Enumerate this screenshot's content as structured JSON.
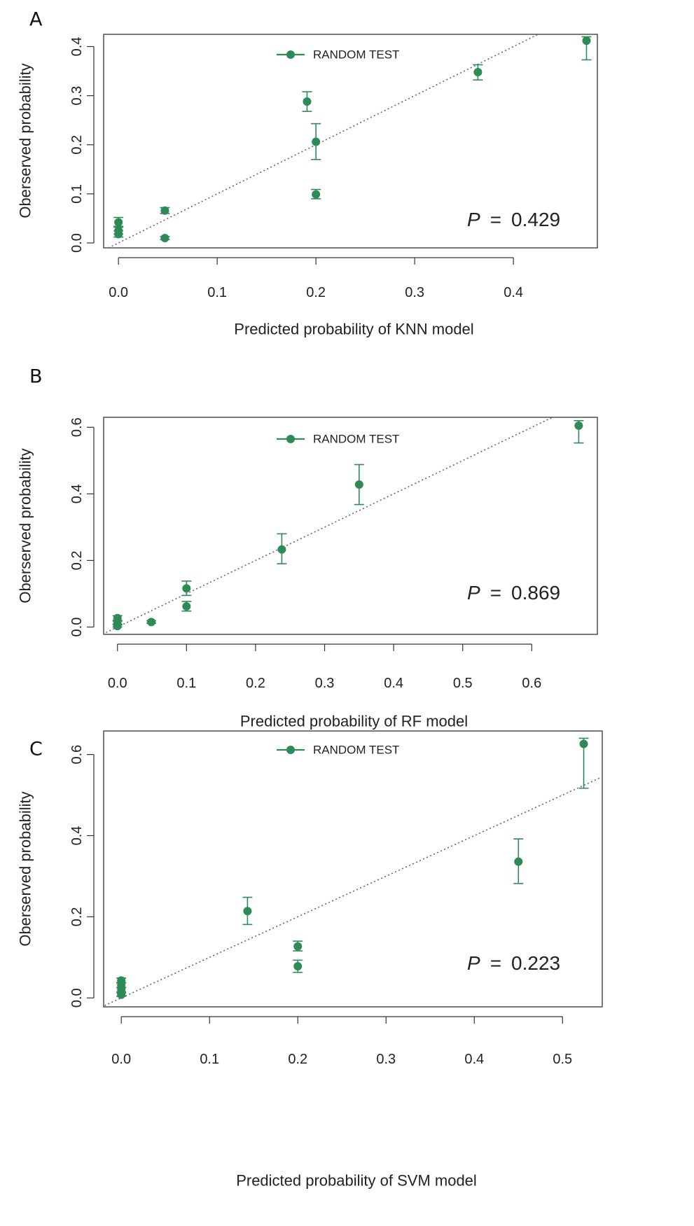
{
  "color": "#2e8b57",
  "chart_data": [
    {
      "panel_label": "A",
      "type": "scatter",
      "xlabel": "Predicted probability of KNN model",
      "ylabel": "Oberserved probability",
      "xlim": [
        -0.015,
        0.485
      ],
      "ylim": [
        -0.01,
        0.425
      ],
      "xticks": [
        "0.0",
        "0.1",
        "0.2",
        "0.3",
        "0.4"
      ],
      "xtick_values": [
        0,
        0.1,
        0.2,
        0.3,
        0.4
      ],
      "yticks": [
        "0.0",
        "0.1",
        "0.2",
        "0.3",
        "0.4"
      ],
      "ytick_values": [
        0,
        0.1,
        0.2,
        0.3,
        0.4
      ],
      "legend": "RANDOM TEST",
      "p_symbol": "P",
      "p_eq": "=",
      "p_value": "0.429",
      "reference_line": "y = x (dotted)",
      "points": [
        {
          "x": 0.0,
          "y": 0.018,
          "lo": 0.012,
          "hi": 0.025
        },
        {
          "x": 0.0,
          "y": 0.025,
          "lo": 0.018,
          "hi": 0.032
        },
        {
          "x": 0.0,
          "y": 0.042,
          "lo": 0.034,
          "hi": 0.052
        },
        {
          "x": 0.047,
          "y": 0.01,
          "lo": 0.007,
          "hi": 0.013
        },
        {
          "x": 0.047,
          "y": 0.066,
          "lo": 0.06,
          "hi": 0.072
        },
        {
          "x": 0.191,
          "y": 0.288,
          "lo": 0.268,
          "hi": 0.308
        },
        {
          "x": 0.2,
          "y": 0.206,
          "lo": 0.17,
          "hi": 0.243
        },
        {
          "x": 0.2,
          "y": 0.099,
          "lo": 0.09,
          "hi": 0.109
        },
        {
          "x": 0.364,
          "y": 0.348,
          "lo": 0.332,
          "hi": 0.363
        },
        {
          "x": 0.474,
          "y": 0.412,
          "lo": 0.373,
          "hi": 0.42
        }
      ]
    },
    {
      "panel_label": "B",
      "type": "scatter",
      "xlabel": "Predicted probability of RF model",
      "ylabel": "Oberserved probability",
      "xlim": [
        -0.02,
        0.695
      ],
      "ylim": [
        -0.022,
        0.63
      ],
      "xticks": [
        "0.0",
        "0.1",
        "0.2",
        "0.3",
        "0.4",
        "0.5",
        "0.6"
      ],
      "xtick_values": [
        0,
        0.1,
        0.2,
        0.3,
        0.4,
        0.5,
        0.6
      ],
      "yticks": [
        "0.0",
        "0.2",
        "0.4",
        "0.6"
      ],
      "ytick_values": [
        0,
        0.2,
        0.4,
        0.6
      ],
      "legend": "RANDOM TEST",
      "p_symbol": "P",
      "p_eq": "=",
      "p_value": "0.869",
      "reference_line": "y = x (dotted)",
      "points": [
        {
          "x": 0.0,
          "y": 0.003,
          "lo": 0.0,
          "hi": 0.008
        },
        {
          "x": 0.0,
          "y": 0.012,
          "lo": 0.007,
          "hi": 0.018
        },
        {
          "x": 0.0,
          "y": 0.027,
          "lo": 0.02,
          "hi": 0.034
        },
        {
          "x": 0.049,
          "y": 0.015,
          "lo": 0.011,
          "hi": 0.019
        },
        {
          "x": 0.1,
          "y": 0.062,
          "lo": 0.048,
          "hi": 0.077
        },
        {
          "x": 0.1,
          "y": 0.116,
          "lo": 0.095,
          "hi": 0.138
        },
        {
          "x": 0.238,
          "y": 0.233,
          "lo": 0.19,
          "hi": 0.28
        },
        {
          "x": 0.35,
          "y": 0.428,
          "lo": 0.368,
          "hi": 0.488
        },
        {
          "x": 0.668,
          "y": 0.605,
          "lo": 0.553,
          "hi": 0.62
        }
      ]
    },
    {
      "panel_label": "C",
      "type": "scatter",
      "xlabel": "Predicted probability of SVM model",
      "ylabel": "Oberserved probability",
      "xlim": [
        -0.02,
        0.545
      ],
      "ylim": [
        -0.022,
        0.658
      ],
      "xticks": [
        "0.0",
        "0.1",
        "0.2",
        "0.3",
        "0.4",
        "0.5"
      ],
      "xtick_values": [
        0,
        0.1,
        0.2,
        0.3,
        0.4,
        0.5
      ],
      "yticks": [
        "0.0",
        "0.2",
        "0.4",
        "0.6"
      ],
      "ytick_values": [
        0,
        0.2,
        0.4,
        0.6
      ],
      "legend": "RANDOM TEST",
      "p_symbol": "P",
      "p_eq": "=",
      "p_value": "0.223",
      "reference_line": "y = x (dotted)",
      "points": [
        {
          "x": 0.0,
          "y": 0.008,
          "lo": 0.004,
          "hi": 0.012
        },
        {
          "x": 0.0,
          "y": 0.02,
          "lo": 0.015,
          "hi": 0.025
        },
        {
          "x": 0.0,
          "y": 0.032,
          "lo": 0.026,
          "hi": 0.038
        },
        {
          "x": 0.0,
          "y": 0.043,
          "lo": 0.037,
          "hi": 0.049
        },
        {
          "x": 0.143,
          "y": 0.214,
          "lo": 0.181,
          "hi": 0.248
        },
        {
          "x": 0.2,
          "y": 0.127,
          "lo": 0.116,
          "hi": 0.14
        },
        {
          "x": 0.2,
          "y": 0.078,
          "lo": 0.063,
          "hi": 0.093
        },
        {
          "x": 0.45,
          "y": 0.336,
          "lo": 0.282,
          "hi": 0.392
        },
        {
          "x": 0.524,
          "y": 0.626,
          "lo": 0.517,
          "hi": 0.64
        }
      ]
    }
  ]
}
